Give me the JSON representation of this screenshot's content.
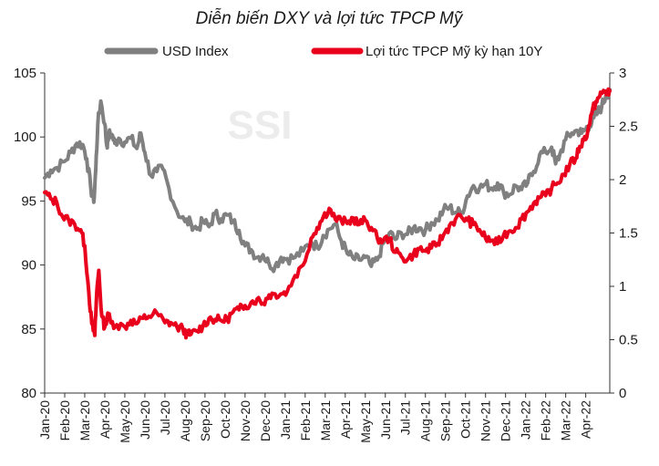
{
  "chart_data": {
    "type": "line",
    "title": "Diễn biến DXY và lợi tức TPCP Mỹ",
    "watermark": "SSI",
    "legend_position": "top",
    "grid": false,
    "x_tick_labels": [
      "Jan-20",
      "Feb-20",
      "Mar-20",
      "Apr-20",
      "May-20",
      "Jun-20",
      "Jul-20",
      "Aug-20",
      "Sep-20",
      "Oct-20",
      "Nov-20",
      "Dec-20",
      "Jan-21",
      "Feb-21",
      "Mar-21",
      "Apr-21",
      "May-21",
      "Jun-21",
      "Jul-21",
      "Aug-21",
      "Sep-21",
      "Oct-21",
      "Nov-21",
      "Dec-21",
      "Jan-22",
      "Feb-22",
      "Mar-22",
      "Apr-22"
    ],
    "x_range_months": [
      0,
      28.2
    ],
    "y_left": {
      "label": "",
      "ylim": [
        80,
        105
      ],
      "ticks": [
        80,
        85,
        90,
        95,
        100,
        105
      ]
    },
    "y_right": {
      "label": "",
      "ylim": [
        0,
        3
      ],
      "ticks": [
        "0",
        "0.5",
        "1",
        "1.5",
        "2",
        "2.5",
        "3"
      ]
    },
    "series": [
      {
        "name": "USD Index",
        "axis": "left",
        "color": "#808080",
        "x": [
          0,
          0.3,
          0.6,
          1.0,
          1.3,
          1.6,
          1.9,
          2.1,
          2.3,
          2.45,
          2.55,
          2.65,
          2.8,
          3.0,
          3.1,
          3.2,
          3.35,
          3.5,
          3.7,
          4.0,
          4.3,
          4.6,
          4.8,
          5.0,
          5.3,
          5.6,
          5.9,
          6.2,
          6.6,
          7.0,
          7.3,
          7.6,
          7.9,
          8.2,
          8.5,
          8.8,
          9.1,
          9.4,
          9.7,
          10.0,
          10.3,
          10.6,
          10.9,
          11.2,
          11.5,
          11.8,
          12.1,
          12.5,
          12.9,
          13.3,
          13.6,
          13.9,
          14.2,
          14.5,
          14.8,
          15.1,
          15.4,
          15.7,
          16.0,
          16.3,
          16.6,
          16.9,
          17.2,
          17.5,
          17.8,
          18.1,
          18.4,
          18.7,
          19.0,
          19.3,
          19.6,
          19.9,
          20.2,
          20.5,
          20.8,
          21.1,
          21.4,
          21.7,
          22.0,
          22.3,
          22.6,
          22.9,
          23.2,
          23.5,
          23.8,
          24.1,
          24.4,
          24.7,
          25.0,
          25.3,
          25.5,
          25.7,
          26.0,
          26.3,
          26.6,
          26.8,
          27.0,
          27.2,
          27.4,
          27.6,
          27.8,
          28.0,
          28.2
        ],
        "y": [
          96.8,
          97.4,
          97.6,
          98.1,
          98.8,
          99.5,
          99.4,
          98.3,
          96.0,
          94.9,
          97.5,
          101.0,
          102.8,
          101.0,
          99.3,
          100.2,
          100.2,
          99.5,
          99.9,
          99.6,
          99.9,
          99.1,
          100.3,
          98.8,
          97.0,
          97.3,
          97.5,
          96.0,
          94.2,
          93.4,
          93.3,
          92.8,
          93.4,
          93.0,
          94.0,
          93.6,
          93.9,
          93.4,
          92.7,
          91.5,
          91.2,
          90.6,
          90.8,
          90.1,
          89.9,
          90.6,
          90.5,
          90.6,
          91.1,
          91.8,
          91.4,
          92.3,
          92.8,
          93.2,
          91.9,
          90.9,
          90.5,
          90.4,
          90.6,
          89.9,
          90.4,
          91.7,
          92.5,
          92.0,
          92.5,
          92.4,
          92.9,
          92.9,
          92.7,
          93.3,
          93.5,
          94.3,
          94.5,
          94.1,
          94.1,
          95.4,
          96.2,
          96.0,
          96.3,
          96.0,
          96.4,
          95.7,
          95.5,
          96.2,
          95.9,
          96.4,
          97.3,
          98.6,
          98.8,
          99.2,
          97.9,
          98.6,
          99.8,
          100.3,
          100.5,
          100.3,
          100.6,
          101.0,
          101.5,
          101.9,
          102.4,
          103.2,
          103.7
        ],
        "y_axis_note": "values in left-axis units"
      },
      {
        "name": "Lợi tức TPCP Mỹ kỳ hạn 10Y",
        "axis": "right",
        "color": "#e8001c",
        "x": [
          0,
          0.3,
          0.6,
          0.9,
          1.2,
          1.5,
          1.8,
          2.0,
          2.2,
          2.35,
          2.5,
          2.6,
          2.7,
          2.85,
          3.0,
          3.15,
          3.3,
          3.6,
          4.0,
          4.3,
          4.6,
          4.9,
          5.2,
          5.6,
          6.0,
          6.3,
          6.6,
          6.9,
          7.1,
          7.3,
          7.6,
          7.9,
          8.2,
          8.5,
          8.8,
          9.1,
          9.4,
          9.7,
          10.0,
          10.3,
          10.6,
          10.9,
          11.2,
          11.5,
          11.8,
          12.1,
          12.5,
          12.9,
          13.3,
          13.6,
          13.9,
          14.2,
          14.5,
          14.8,
          15.1,
          15.4,
          15.7,
          16.0,
          16.3,
          16.6,
          16.9,
          17.2,
          17.5,
          17.8,
          18.1,
          18.4,
          18.7,
          19.0,
          19.3,
          19.6,
          19.9,
          20.2,
          20.5,
          20.8,
          21.1,
          21.4,
          21.7,
          22.0,
          22.3,
          22.6,
          22.9,
          23.2,
          23.5,
          23.8,
          24.1,
          24.4,
          24.7,
          25.0,
          25.3,
          25.6,
          25.9,
          26.2,
          26.5,
          26.7,
          26.9,
          27.1,
          27.3,
          27.5,
          27.7,
          27.85,
          28.0,
          28.1,
          28.2
        ],
        "values": [
          1.88,
          1.82,
          1.79,
          1.65,
          1.62,
          1.58,
          1.53,
          1.38,
          0.95,
          0.65,
          0.54,
          0.95,
          1.15,
          0.72,
          0.62,
          0.75,
          0.66,
          0.64,
          0.62,
          0.68,
          0.65,
          0.7,
          0.72,
          0.75,
          0.66,
          0.66,
          0.62,
          0.6,
          0.55,
          0.55,
          0.58,
          0.63,
          0.7,
          0.69,
          0.68,
          0.69,
          0.76,
          0.78,
          0.82,
          0.85,
          0.88,
          0.84,
          0.92,
          0.93,
          0.93,
          0.95,
          1.1,
          1.2,
          1.45,
          1.55,
          1.65,
          1.73,
          1.63,
          1.62,
          1.59,
          1.64,
          1.58,
          1.62,
          1.55,
          1.45,
          1.43,
          1.45,
          1.32,
          1.28,
          1.25,
          1.3,
          1.35,
          1.33,
          1.36,
          1.4,
          1.48,
          1.57,
          1.63,
          1.65,
          1.62,
          1.58,
          1.53,
          1.45,
          1.43,
          1.4,
          1.48,
          1.52,
          1.55,
          1.63,
          1.7,
          1.78,
          1.83,
          1.85,
          1.92,
          1.97,
          2.05,
          2.14,
          2.2,
          2.31,
          2.37,
          2.45,
          2.62,
          2.73,
          2.78,
          2.82,
          2.83,
          2.8,
          2.83
        ]
      }
    ]
  }
}
